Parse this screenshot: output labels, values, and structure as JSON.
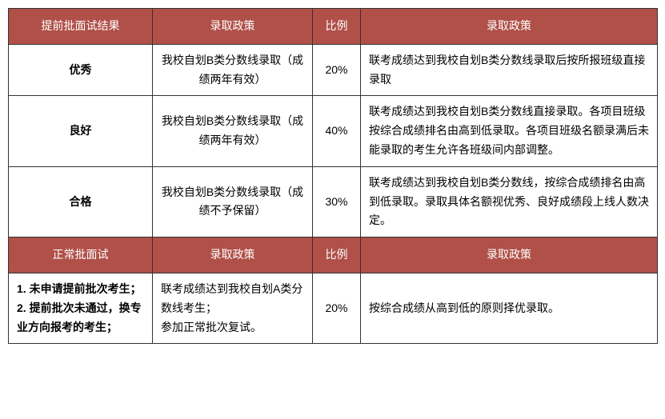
{
  "colors": {
    "header_bg": "#b05048",
    "header_text": "#ffffff",
    "border": "#333333",
    "cell_bg": "#ffffff",
    "cell_text": "#000000"
  },
  "columns": {
    "widths": [
      180,
      200,
      60,
      371
    ]
  },
  "header1": {
    "c1": "提前批面试结果",
    "c2": "录取政策",
    "c3": "比例",
    "c4": "录取政策"
  },
  "rows1": [
    {
      "c1": "优秀",
      "c2": "我校自划B类分数线录取（成绩两年有效）",
      "c3": "20%",
      "c4": "联考成绩达到我校自划B类分数线录取后按所报班级直接录取"
    },
    {
      "c1": "良好",
      "c2": "我校自划B类分数线录取（成绩两年有效）",
      "c3": "40%",
      "c4": "联考成绩达到我校自划B类分数线直接录取。各项目班级按综合成绩排名由高到低录取。各项目班级名额录满后未能录取的考生允许各班级间内部调整。"
    },
    {
      "c1": "合格",
      "c2": "我校自划B类分数线录取（成绩不予保留）",
      "c3": "30%",
      "c4": "联考成绩达到我校自划B类分数线，按综合成绩排名由高到低录取。录取具体名额视优秀、良好成绩段上线人数决定。"
    }
  ],
  "header2": {
    "c1": "正常批面试",
    "c2": "录取政策",
    "c3": "比例",
    "c4": "录取政策"
  },
  "rows2": [
    {
      "c1": "1. 未申请提前批次考生；\n2. 提前批次未通过，换专业方向报考的考生；",
      "c2": "联考成绩达到我校自划A类分数线考生；\n参加正常批次复试。",
      "c3": "20%",
      "c4": "按综合成绩从高到低的原则择优录取。"
    }
  ]
}
